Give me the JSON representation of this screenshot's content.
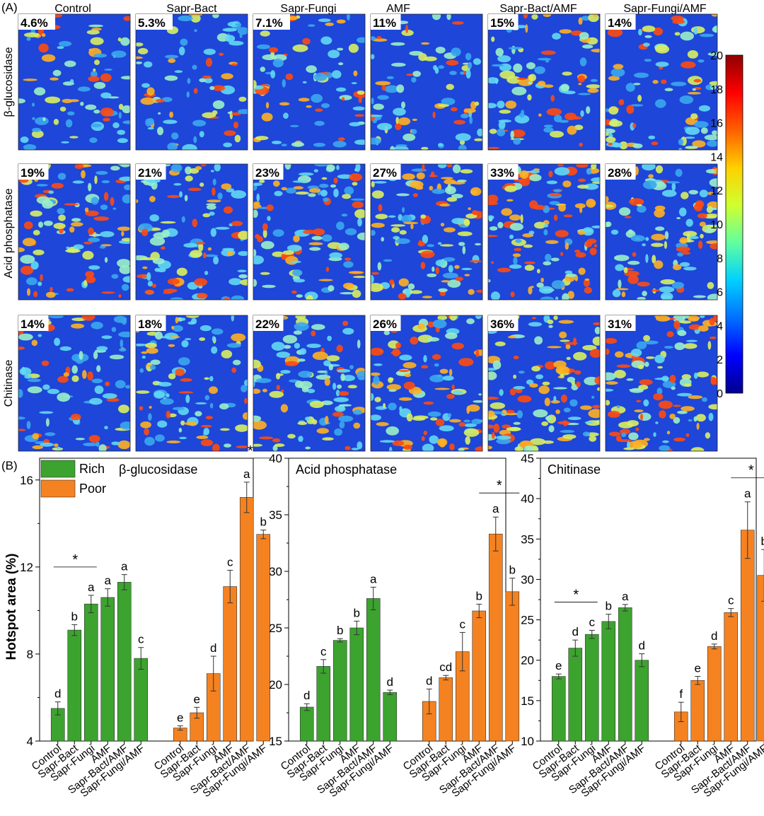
{
  "panel_a": {
    "label": "(A)",
    "treatments": [
      "Control",
      "Sapr-Bact",
      "Sapr-Fungi",
      "AMF",
      "Sapr-Bact/AMF",
      "Sapr-Fungi/AMF"
    ],
    "enzymes": [
      "β-glucosidase",
      "Acid phosphatase",
      "Chitinase"
    ],
    "hotspot_labels": [
      [
        "4.6%",
        "5.3%",
        "7.1%",
        "11%",
        "15%",
        "14%"
      ],
      [
        "19%",
        "21%",
        "23%",
        "27%",
        "33%",
        "28%"
      ],
      [
        "14%",
        "18%",
        "22%",
        "26%",
        "36%",
        "31%"
      ]
    ],
    "colorbar": {
      "ticks": [
        "0",
        "2",
        "4",
        "6",
        "8",
        "10",
        "12",
        "14",
        "16",
        "18",
        "20"
      ],
      "colors": [
        "#00008f",
        "#0000ff",
        "#0070ff",
        "#00d0ff",
        "#60ffa0",
        "#d0ff30",
        "#ffd000",
        "#ff6000",
        "#ff0000",
        "#8f0000"
      ]
    },
    "image_palette": {
      "background": "#1e46d8",
      "spot_colors": [
        "#3aa7f0",
        "#62d8f4",
        "#9af0c8",
        "#d8f060",
        "#ffb020",
        "#ff4a10"
      ]
    }
  },
  "panel_b": {
    "label": "(B)",
    "ylabel": "Hotspot area (%)",
    "legend": [
      {
        "label": "Rich",
        "color": "#3ca32f"
      },
      {
        "label": "Poor",
        "color": "#f58220"
      }
    ]
  },
  "chart_data": [
    {
      "type": "bar",
      "title": "β-glucosidase",
      "ylabel": "Hotspot area (%)",
      "ylim": [
        4,
        17
      ],
      "yticks": [
        4,
        8,
        12,
        16
      ],
      "categories": [
        "Control",
        "Sapr-Bact",
        "Sapr-Fungi",
        "AMF",
        "Sapr-Bact/AMF",
        "Sapr-Fungi/AMF"
      ],
      "series": [
        {
          "name": "Rich",
          "values": [
            5.5,
            9.1,
            10.3,
            10.6,
            11.3,
            7.8
          ],
          "errors": [
            0.3,
            0.25,
            0.4,
            0.4,
            0.35,
            0.5
          ],
          "letters": [
            "d",
            "b",
            "a",
            "a",
            "a",
            "c"
          ]
        },
        {
          "name": "Poor",
          "values": [
            4.6,
            5.3,
            7.1,
            11.1,
            15.2,
            13.5
          ],
          "errors": [
            0.1,
            0.25,
            0.8,
            0.75,
            0.7,
            0.2
          ],
          "letters": [
            "e",
            "e",
            "d",
            "c",
            "a",
            "b"
          ]
        }
      ],
      "annotations": [
        {
          "text": "*",
          "group": 0
        },
        {
          "text": "*",
          "group": 1
        }
      ]
    },
    {
      "type": "bar",
      "title": "Acid phosphatase",
      "ylabel": "",
      "ylim": [
        15,
        40
      ],
      "yticks": [
        15,
        20,
        25,
        30,
        35,
        40
      ],
      "categories": [
        "Control",
        "Sapr-Bact",
        "Sapr-Fungi",
        "AMF",
        "Sapr-Bact/AMF",
        "Sapr-Fungi/AMF"
      ],
      "series": [
        {
          "name": "Rich",
          "values": [
            18.0,
            21.6,
            23.9,
            25.0,
            27.6,
            19.3
          ],
          "errors": [
            0.3,
            0.6,
            0.15,
            0.6,
            1.0,
            0.2
          ],
          "letters": [
            "d",
            "c",
            "b",
            "b",
            "a",
            "d"
          ]
        },
        {
          "name": "Poor",
          "values": [
            18.5,
            20.6,
            22.9,
            26.5,
            33.3,
            28.2
          ],
          "errors": [
            1.1,
            0.2,
            1.7,
            0.6,
            1.5,
            1.2
          ],
          "letters": [
            "d",
            "cd",
            "c",
            "b",
            "a",
            "b"
          ]
        }
      ],
      "annotations": [
        {
          "text": "*",
          "group": 1
        }
      ]
    },
    {
      "type": "bar",
      "title": "Chitinase",
      "ylabel": "",
      "ylim": [
        10,
        45
      ],
      "yticks": [
        10,
        15,
        20,
        25,
        30,
        35,
        40,
        45
      ],
      "categories": [
        "Control",
        "Sapr-Bact",
        "Sapr-Fungi",
        "AMF",
        "Sapr-Bact/AMF",
        "Sapr-Fungi/AMF"
      ],
      "series": [
        {
          "name": "Rich",
          "values": [
            18.0,
            21.5,
            23.2,
            24.8,
            26.5,
            20.0
          ],
          "errors": [
            0.3,
            1.0,
            0.5,
            0.9,
            0.4,
            0.8
          ],
          "letters": [
            "e",
            "d",
            "c",
            "b",
            "a",
            "d"
          ]
        },
        {
          "name": "Poor",
          "values": [
            13.6,
            17.5,
            21.7,
            25.9,
            36.1,
            30.5
          ],
          "errors": [
            1.2,
            0.5,
            0.3,
            0.5,
            3.5,
            3.2
          ],
          "letters": [
            "f",
            "e",
            "d",
            "c",
            "a",
            "b"
          ]
        }
      ],
      "annotations": [
        {
          "text": "*",
          "group": 0
        },
        {
          "text": "*",
          "group": 1
        }
      ]
    }
  ]
}
